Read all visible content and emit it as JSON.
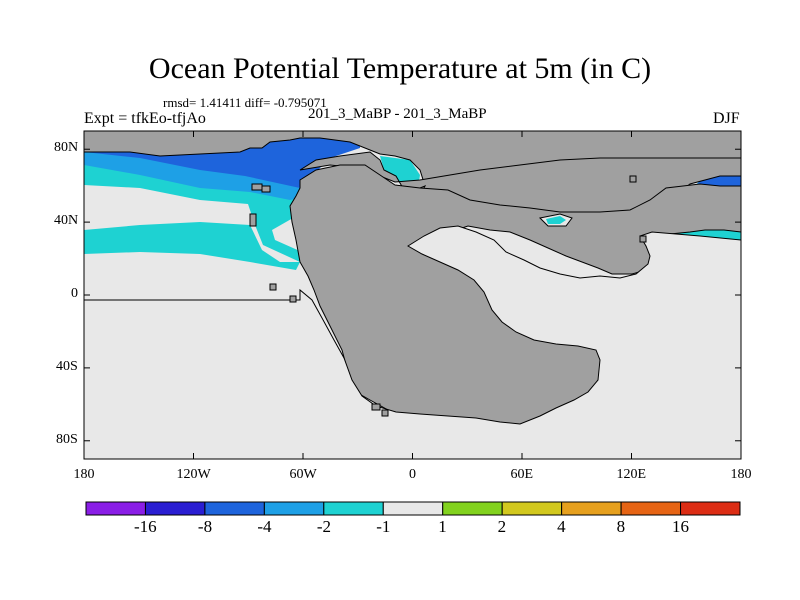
{
  "header": {
    "title": "Ocean Potential Temperature at 5m (in C)",
    "stats": "rmsd= 1.41411 diff= -0.795071",
    "expt": "Expt = tfkEo-tfjAo",
    "case": "201_3_MaBP - 201_3_MaBP",
    "season": "DJF"
  },
  "chart_data": {
    "type": "heatmap",
    "title": "Ocean Potential Temperature at 5m (in C)",
    "xlim": [
      -180,
      180
    ],
    "ylim": [
      -90,
      90
    ],
    "x_ticks": [
      {
        "value": -180,
        "label": "180"
      },
      {
        "value": -120,
        "label": "120W"
      },
      {
        "value": -60,
        "label": "60W"
      },
      {
        "value": 0,
        "label": "0"
      },
      {
        "value": 60,
        "label": "60E"
      },
      {
        "value": 120,
        "label": "120E"
      },
      {
        "value": 180,
        "label": "180"
      }
    ],
    "y_ticks": [
      {
        "value": 80,
        "label": "80N"
      },
      {
        "value": 40,
        "label": "40N"
      },
      {
        "value": 0,
        "label": "0"
      },
      {
        "value": -40,
        "label": "40S"
      },
      {
        "value": -80,
        "label": "80S"
      }
    ],
    "colorbar": {
      "levels": [
        "-16",
        "-8",
        "-4",
        "-2",
        "-1",
        "1",
        "2",
        "4",
        "8",
        "16"
      ],
      "colors": [
        "#8a1ee6",
        "#2a1ed2",
        "#1e64dc",
        "#1ea0e6",
        "#1ed2d2",
        "#e8e8e8",
        "#82d21e",
        "#d2c81e",
        "#e6a01e",
        "#e66414",
        "#dc2d14"
      ]
    },
    "fields": [
      {
        "value_range": "-8 to -4",
        "color": "#1e64dc",
        "region": "northern high latitudes, 80N-55N, 180-40W and 140E-180"
      },
      {
        "value_range": "-4 to -2",
        "color": "#1ea0e6",
        "region": "northern mid latitudes, 60N-40N"
      },
      {
        "value_range": "-2 to -1",
        "color": "#1ed2d2",
        "region": "40N-25N bands on both basins"
      },
      {
        "value_range": "-1 to 1",
        "color": "#e8e8e8",
        "region": "tropics and southern hemisphere ocean"
      }
    ],
    "land_color": "#a0a0a0"
  }
}
